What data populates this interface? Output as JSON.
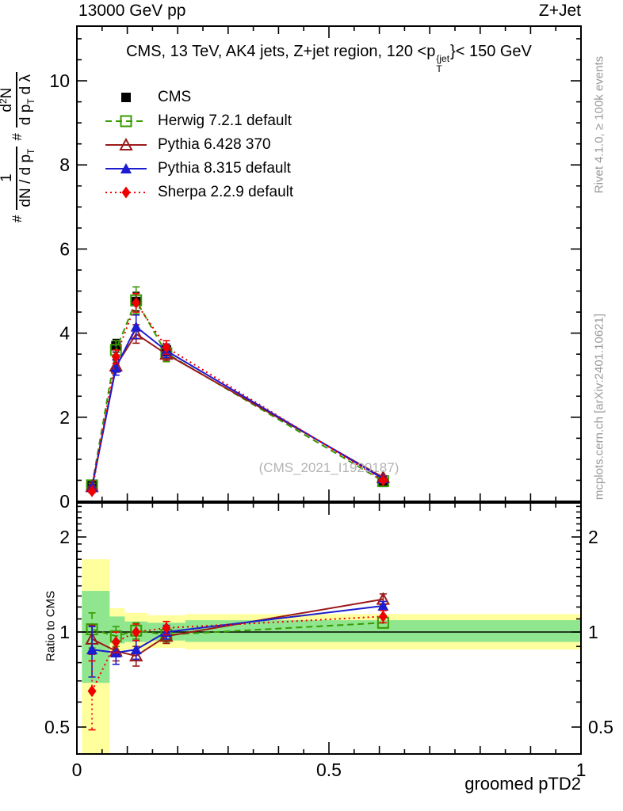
{
  "header": {
    "left": "13000 GeV pp",
    "right": "Z+Jet"
  },
  "panel_title": {
    "part1": "CMS, 13 TeV, AK4 jets, Z+jet region, 120 <p",
    "sup": "{jet",
    "sub": "T",
    "part2": "}< 150 GeV"
  },
  "ylabel_formula": {
    "h1": "#",
    "num1": "1",
    "den1a": "dN / d p",
    "den1sub": "T",
    "h2": "#",
    "num2a": "d",
    "num2sup": "2",
    "num2b": "N",
    "den2a": "d p",
    "den2sub": "T",
    "den2b": "d λ"
  },
  "ratio_ylabel": "Ratio to CMS",
  "xlabel": "groomed pTD2",
  "watermark": "(CMS_2021_I1920187)",
  "right_margin": {
    "top": "Rivet 4.1.0, ≥ 100k events",
    "bottom": "mcplots.cern.ch [arXiv:2401.10621]"
  },
  "chart_data": {
    "type": "line",
    "title": "CMS, 13 TeV, AK4 jets, Z+jet region, 120 < pT{jet} < 150 GeV",
    "xlabel": "groomed pTD2",
    "ylabel": "# 1/(dN/dpT) d2N/(dpT dLambda)",
    "ratio_label": "Ratio to CMS",
    "x": [
      0.03,
      0.0775,
      0.1175,
      0.1775,
      0.6075
    ],
    "bin_edges": [
      0.01,
      0.065,
      0.095,
      0.14,
      0.215,
      1.0
    ],
    "xlim": [
      0,
      1
    ],
    "main_ylim": [
      0,
      11.3
    ],
    "ratio_ylim": [
      0.41,
      2.56
    ],
    "ratio_scale": "log",
    "xticks": [
      0,
      0.5,
      1
    ],
    "main_yticks": [
      0,
      2,
      4,
      6,
      8,
      10
    ],
    "ratio_yticks": [
      0.5,
      1,
      2
    ],
    "grid": false,
    "legend_position": "top-left-inside",
    "series": [
      {
        "name": "CMS",
        "color": "#000000",
        "marker": "square-filled",
        "line": "none",
        "values": [
          0.37,
          3.7,
          4.75,
          3.6,
          0.45
        ],
        "errors": [
          0.04,
          0.15,
          0.22,
          0.14,
          0.04
        ]
      },
      {
        "name": "Herwig 7.2.1 default",
        "color": "#379b00",
        "marker": "square-open",
        "line": "dashed",
        "values": [
          0.38,
          3.6,
          4.78,
          3.52,
          0.48
        ],
        "errors": [
          0.05,
          0.22,
          0.32,
          0.2,
          0.04
        ],
        "ratio": [
          1.02,
          0.97,
          1.01,
          0.98,
          1.07
        ],
        "ratio_errors": [
          0.13,
          0.07,
          0.06,
          0.05,
          0.04
        ]
      },
      {
        "name": "Pythia 6.428 370",
        "color": "#9b1a1a",
        "marker": "triangle-open",
        "line": "solid",
        "values": [
          0.35,
          3.22,
          3.98,
          3.5,
          0.57
        ],
        "errors": [
          0.04,
          0.15,
          0.22,
          0.15,
          0.04
        ],
        "ratio": [
          0.95,
          0.87,
          0.84,
          0.97,
          1.27
        ],
        "ratio_errors": [
          0.1,
          0.06,
          0.06,
          0.05,
          0.05
        ]
      },
      {
        "name": "Pythia 8.315 default",
        "color": "#1c1cd2",
        "marker": "triangle-filled",
        "line": "solid",
        "values": [
          0.33,
          3.18,
          4.15,
          3.58,
          0.54
        ],
        "errors": [
          0.05,
          0.18,
          0.28,
          0.16,
          0.04
        ],
        "ratio": [
          0.88,
          0.86,
          0.88,
          1.0,
          1.21
        ],
        "ratio_errors": [
          0.16,
          0.07,
          0.06,
          0.05,
          0.04
        ]
      },
      {
        "name": "Sherpa 2.2.9 default",
        "color": "#ee0000",
        "marker": "diamond-filled",
        "line": "dotted",
        "values": [
          0.24,
          3.44,
          4.72,
          3.66,
          0.5
        ],
        "errors": [
          0.04,
          0.16,
          0.22,
          0.16,
          0.04
        ],
        "ratio": [
          0.65,
          0.93,
          1.0,
          1.03,
          1.12
        ],
        "ratio_errors": [
          0.16,
          0.07,
          0.06,
          0.05,
          0.05
        ]
      }
    ],
    "ratio_reference_line": 1,
    "bands": {
      "yellow_color": "#ffff9e",
      "green_color": "#8fe68f",
      "per_bin": [
        {
          "yellow": [
            0.41,
            1.7
          ],
          "green": [
            0.69,
            1.35
          ]
        },
        {
          "yellow": [
            0.86,
            1.19
          ],
          "green": [
            0.92,
            1.12
          ]
        },
        {
          "yellow": [
            0.88,
            1.15
          ],
          "green": [
            0.93,
            1.08
          ]
        },
        {
          "yellow": [
            0.89,
            1.13
          ],
          "green": [
            0.94,
            1.07
          ]
        },
        {
          "yellow": [
            0.88,
            1.14
          ],
          "green": [
            0.93,
            1.09
          ]
        }
      ]
    }
  }
}
